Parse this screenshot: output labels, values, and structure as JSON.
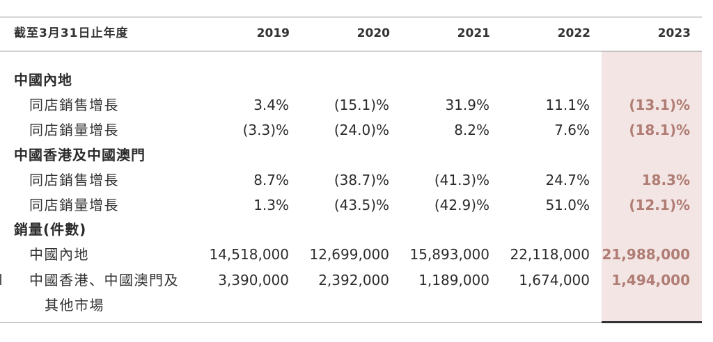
{
  "header": {
    "label": "截至3月31日止年度",
    "years": [
      "2019",
      "2020",
      "2021",
      "2022",
      "2023"
    ]
  },
  "sections": {
    "mainland": {
      "title": "中國內地",
      "rows": [
        {
          "label": "同店銷售增長",
          "values": [
            "3.4%",
            "(15.1)%",
            "31.9%",
            "11.1%",
            "(13.1)%"
          ]
        },
        {
          "label": "同店銷量增長",
          "values": [
            "(3.3)%",
            "(24.0)%",
            "8.2%",
            "7.6%",
            "(18.1)%"
          ]
        }
      ]
    },
    "hkmacau": {
      "title": "中國香港及中國澳門",
      "rows": [
        {
          "label": "同店銷售增長",
          "values": [
            "8.7%",
            "(38.7)%",
            "(41.3)%",
            "24.7%",
            "18.3%"
          ]
        },
        {
          "label": "同店銷量增長",
          "values": [
            "1.3%",
            "(43.5)%",
            "(42.9)%",
            "51.0%",
            "(12.1)%"
          ]
        }
      ]
    },
    "volume": {
      "title": "銷量(件數)",
      "rows": [
        {
          "label": "中國內地",
          "values": [
            "14,518,000",
            "12,699,000",
            "15,893,000",
            "22,118,000",
            "21,988,000"
          ]
        },
        {
          "label": "中國香港、中國澳門及",
          "label_cont": "其他市場",
          "values": [
            "3,390,000",
            "2,392,000",
            "1,189,000",
            "1,674,000",
            "1,494,000"
          ]
        }
      ]
    }
  },
  "colors": {
    "highlight_bg": "#f2e5e3",
    "highlight_text": "#b07c74",
    "body_text": "#2b2b2b"
  }
}
